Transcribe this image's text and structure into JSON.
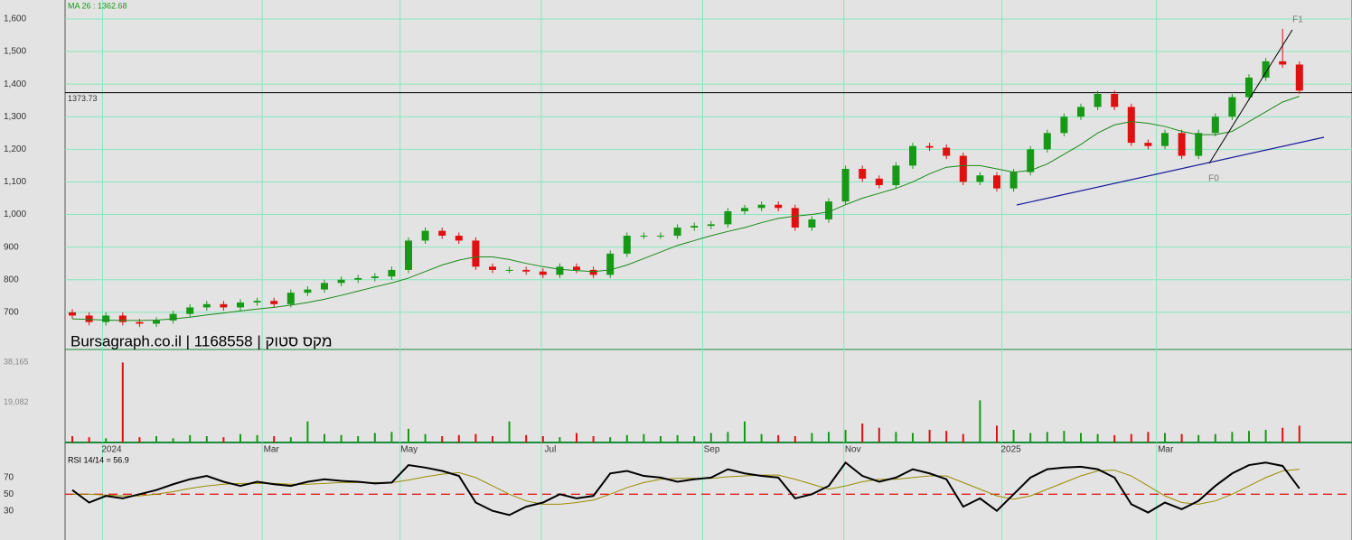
{
  "chart_data": [
    {
      "type": "candlestick",
      "title": "MA 26 : 1362.68",
      "watermark": "Bursagraph.co.il | 1168558 | מקס סטוק",
      "candles": [
        [
          700,
          710,
          680,
          690
        ],
        [
          690,
          700,
          660,
          670
        ],
        [
          670,
          700,
          660,
          690
        ],
        [
          690,
          700,
          660,
          670
        ],
        [
          670,
          680,
          655,
          665
        ],
        [
          665,
          685,
          655,
          675
        ],
        [
          675,
          705,
          665,
          695
        ],
        [
          695,
          725,
          685,
          715
        ],
        [
          715,
          735,
          705,
          725
        ],
        [
          725,
          735,
          705,
          715
        ],
        [
          715,
          740,
          705,
          730
        ],
        [
          730,
          745,
          720,
          735
        ],
        [
          735,
          745,
          715,
          725
        ],
        [
          725,
          770,
          715,
          760
        ],
        [
          760,
          780,
          750,
          770
        ],
        [
          770,
          800,
          760,
          790
        ],
        [
          790,
          810,
          780,
          800
        ],
        [
          800,
          815,
          790,
          805
        ],
        [
          805,
          820,
          795,
          810
        ],
        [
          810,
          840,
          800,
          830
        ],
        [
          830,
          930,
          820,
          920
        ],
        [
          920,
          960,
          910,
          950
        ],
        [
          950,
          960,
          925,
          935
        ],
        [
          935,
          945,
          910,
          920
        ],
        [
          920,
          930,
          830,
          840
        ],
        [
          840,
          850,
          820,
          830
        ],
        [
          830,
          840,
          820,
          830
        ],
        [
          830,
          840,
          815,
          825
        ],
        [
          825,
          835,
          805,
          815
        ],
        [
          815,
          850,
          805,
          840
        ],
        [
          840,
          850,
          820,
          830
        ],
        [
          830,
          840,
          805,
          815
        ],
        [
          815,
          890,
          805,
          880
        ],
        [
          880,
          945,
          870,
          935
        ],
        [
          935,
          945,
          925,
          935
        ],
        [
          935,
          945,
          925,
          935
        ],
        [
          935,
          970,
          925,
          960
        ],
        [
          960,
          975,
          950,
          965
        ],
        [
          965,
          980,
          955,
          970
        ],
        [
          970,
          1020,
          960,
          1010
        ],
        [
          1010,
          1030,
          1000,
          1020
        ],
        [
          1020,
          1040,
          1010,
          1030
        ],
        [
          1030,
          1040,
          1010,
          1020
        ],
        [
          1020,
          1030,
          950,
          960
        ],
        [
          960,
          995,
          950,
          985
        ],
        [
          985,
          1050,
          975,
          1040
        ],
        [
          1040,
          1150,
          1030,
          1140
        ],
        [
          1140,
          1150,
          1100,
          1110
        ],
        [
          1110,
          1120,
          1080,
          1090
        ],
        [
          1090,
          1160,
          1080,
          1150
        ],
        [
          1150,
          1220,
          1140,
          1210
        ],
        [
          1210,
          1220,
          1195,
          1205
        ],
        [
          1205,
          1215,
          1170,
          1180
        ],
        [
          1180,
          1190,
          1090,
          1100
        ],
        [
          1100,
          1130,
          1090,
          1120
        ],
        [
          1120,
          1130,
          1070,
          1080
        ],
        [
          1080,
          1140,
          1070,
          1130
        ],
        [
          1130,
          1210,
          1120,
          1200
        ],
        [
          1200,
          1260,
          1190,
          1250
        ],
        [
          1250,
          1310,
          1240,
          1300
        ],
        [
          1300,
          1340,
          1290,
          1330
        ],
        [
          1330,
          1380,
          1320,
          1370
        ],
        [
          1370,
          1380,
          1320,
          1330
        ],
        [
          1330,
          1340,
          1210,
          1220
        ],
        [
          1220,
          1230,
          1200,
          1210
        ],
        [
          1210,
          1260,
          1200,
          1250
        ],
        [
          1250,
          1260,
          1170,
          1180
        ],
        [
          1180,
          1260,
          1170,
          1250
        ],
        [
          1250,
          1310,
          1240,
          1300
        ],
        [
          1300,
          1370,
          1290,
          1360
        ],
        [
          1360,
          1430,
          1350,
          1420
        ],
        [
          1420,
          1480,
          1410,
          1470
        ],
        [
          1470,
          1570,
          1450,
          1460
        ],
        [
          1460,
          1470,
          1370,
          1380
        ]
      ],
      "ma_values": [
        680,
        678,
        676,
        675,
        675,
        676,
        680,
        685,
        692,
        698,
        704,
        710,
        715,
        722,
        730,
        740,
        752,
        765,
        778,
        790,
        805,
        825,
        845,
        860,
        870,
        870,
        862,
        850,
        840,
        832,
        828,
        825,
        830,
        845,
        865,
        885,
        905,
        920,
        935,
        948,
        960,
        975,
        988,
        995,
        1000,
        1008,
        1030,
        1050,
        1065,
        1080,
        1100,
        1125,
        1145,
        1150,
        1150,
        1140,
        1130,
        1135,
        1155,
        1185,
        1215,
        1250,
        1275,
        1285,
        1280,
        1270,
        1255,
        1245,
        1245,
        1255,
        1285,
        1315,
        1345,
        1362.68
      ],
      "up_color": "#169a16",
      "down_color": "#e01010",
      "ma_color": "#1a8a1a",
      "ref_line": 1373.73,
      "annotations": [
        "F0",
        "F1"
      ],
      "ylim": [
        586,
        1658
      ],
      "yticks": [
        700,
        800,
        900,
        {
          "value": 1000,
          "label": "1,000"
        },
        {
          "value": 1100,
          "label": "1,100"
        },
        {
          "value": 1200,
          "label": "1,200"
        },
        {
          "value": 1300,
          "label": "1,300"
        },
        {
          "value": 1400,
          "label": "1,400"
        },
        {
          "value": 1500,
          "label": "1,500"
        },
        {
          "value": 1600,
          "label": "1,600"
        }
      ],
      "grid": true
    },
    {
      "type": "bar",
      "values": [
        3000,
        2500,
        2000,
        38000,
        2500,
        3000,
        2000,
        3500,
        3000,
        2500,
        4000,
        3500,
        3000,
        2500,
        10000,
        4000,
        3500,
        3000,
        4500,
        5000,
        6500,
        4000,
        3000,
        3500,
        4000,
        3000,
        10000,
        3500,
        3000,
        2500,
        4500,
        3000,
        2500,
        3500,
        4000,
        3000,
        3500,
        3000,
        4500,
        5000,
        10000,
        4000,
        3500,
        3000,
        4500,
        5000,
        6000,
        9000,
        7000,
        5000,
        4500,
        6000,
        5500,
        4000,
        20000,
        8000,
        6000,
        4500,
        5000,
        5500,
        4500,
        4000,
        3500,
        4000,
        5000,
        4500,
        4000,
        3500,
        4000,
        5000,
        5500,
        6000,
        7000,
        8000
      ],
      "ylim": [
        0,
        44170
      ],
      "yticks": [
        {
          "value": 38165,
          "label": "38,165"
        },
        {
          "value": 19082,
          "label": "19,082"
        }
      ],
      "xticks": [
        {
          "value": 1.8,
          "label": "2024"
        },
        {
          "value": 11.3,
          "label": "Mar"
        },
        {
          "value": 19.5,
          "label": "May"
        },
        {
          "value": 27.9,
          "label": "Jul"
        },
        {
          "value": 37.5,
          "label": "Sep"
        },
        {
          "value": 45.9,
          "label": "Nov"
        },
        {
          "value": 55.3,
          "label": "2025"
        },
        {
          "value": 64.5,
          "label": "Mar"
        }
      ]
    },
    {
      "type": "line",
      "title": "RSI 14/14 = 56.9",
      "series": [
        {
          "color": "#000000",
          "values": [
            55,
            40,
            48,
            45,
            50,
            55,
            62,
            68,
            72,
            65,
            60,
            65,
            62,
            60,
            65,
            68,
            66,
            65,
            63,
            64,
            85,
            82,
            78,
            72,
            40,
            30,
            25,
            35,
            40,
            50,
            45,
            48,
            75,
            78,
            72,
            70,
            65,
            68,
            70,
            80,
            75,
            72,
            70,
            45,
            50,
            60,
            88,
            72,
            65,
            70,
            80,
            75,
            68,
            35,
            45,
            30,
            50,
            70,
            80,
            82,
            83,
            80,
            70,
            38,
            28,
            40,
            32,
            42,
            60,
            75,
            85,
            88,
            84,
            56.9
          ]
        },
        {
          "color": "#9a8c00",
          "values": [
            50,
            50,
            49,
            48,
            48,
            50,
            53,
            57,
            60,
            62,
            63,
            63,
            63,
            62,
            62,
            63,
            64,
            64,
            64,
            64,
            67,
            71,
            74,
            76,
            70,
            60,
            50,
            42,
            38,
            38,
            40,
            43,
            50,
            58,
            64,
            68,
            69,
            69,
            69,
            71,
            72,
            73,
            73,
            68,
            62,
            56,
            60,
            65,
            68,
            68,
            70,
            72,
            72,
            64,
            56,
            48,
            44,
            48,
            56,
            64,
            72,
            78,
            79,
            72,
            60,
            48,
            40,
            38,
            42,
            50,
            60,
            70,
            78,
            80
          ]
        }
      ],
      "ref_line": 50,
      "ref_color": "#e02020",
      "ylim": [
        -5,
        110
      ],
      "yticks": [
        70,
        50,
        30
      ]
    }
  ]
}
